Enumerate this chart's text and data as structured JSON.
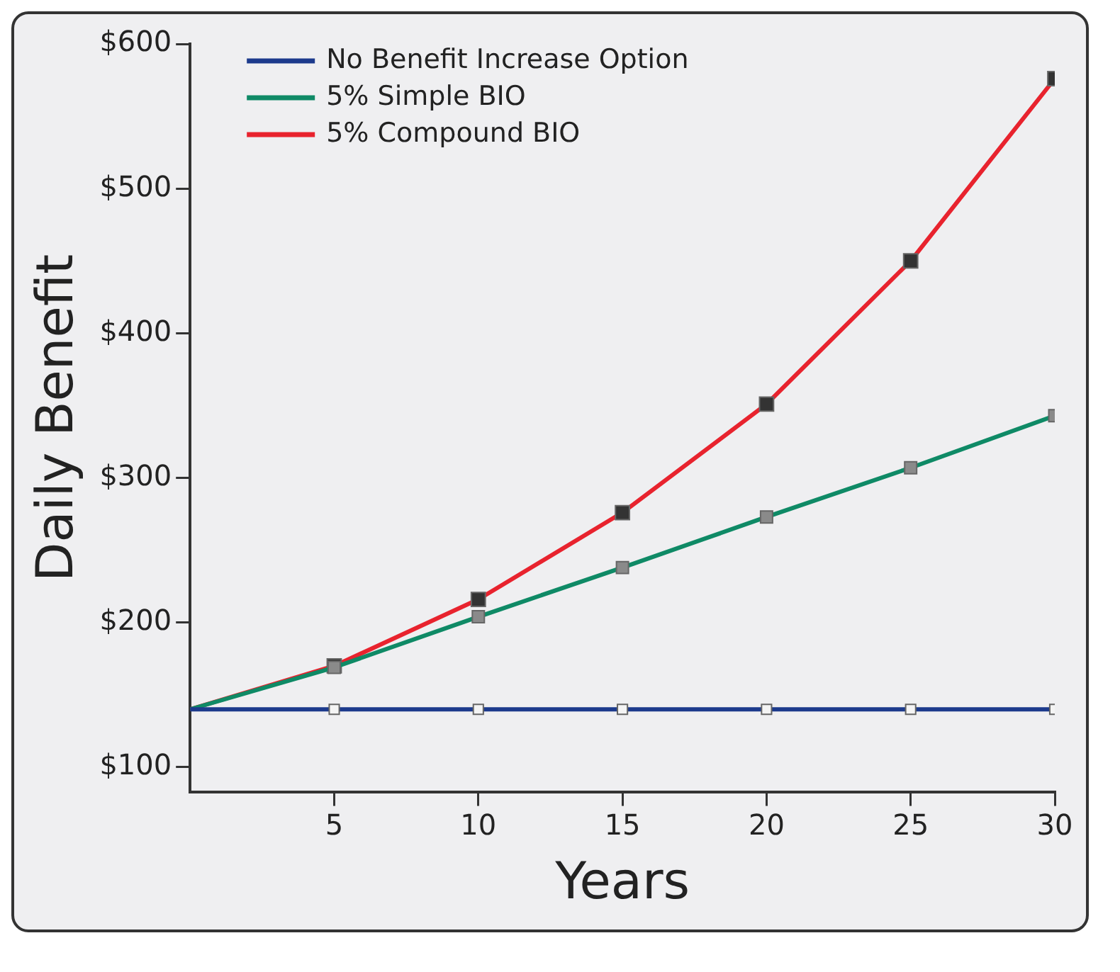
{
  "chart_data": {
    "type": "line",
    "xlabel": "Years",
    "ylabel": "Daily Benefit",
    "x": [
      0,
      5,
      10,
      15,
      20,
      25,
      30
    ],
    "series": [
      {
        "name": "No Benefit Increase Option",
        "color": "#1c3a8c",
        "values": [
          140,
          140,
          140,
          140,
          140,
          140,
          140
        ]
      },
      {
        "name": "5% Simple BIO",
        "color": "#0f8a66",
        "values": [
          140,
          169,
          204,
          238,
          273,
          307,
          343
        ]
      },
      {
        "name": "5% Compound BIO",
        "color": "#e8232e",
        "values": [
          140,
          170,
          216,
          276,
          351,
          450,
          576
        ]
      }
    ],
    "xlim": [
      0,
      30
    ],
    "xticks": [
      5,
      10,
      15,
      20,
      25,
      30
    ],
    "ylim": [
      83,
      600
    ],
    "yticks": [
      {
        "value": 100,
        "label": "$100"
      },
      {
        "value": 200,
        "label": "$200"
      },
      {
        "value": 300,
        "label": "$300"
      },
      {
        "value": 400,
        "label": "$400"
      },
      {
        "value": 500,
        "label": "$500"
      },
      {
        "value": 600,
        "label": "$600"
      }
    ],
    "grid": false,
    "legend": "top left",
    "marker": "square",
    "line_style": "solid"
  }
}
